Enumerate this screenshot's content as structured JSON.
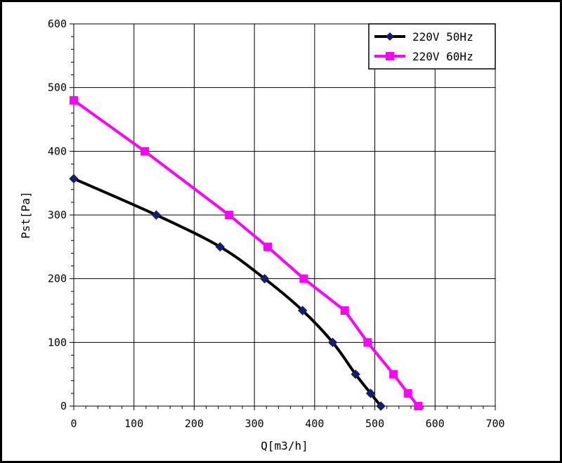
{
  "chart_data": {
    "type": "line",
    "xlabel": "Q[m3/h]",
    "ylabel": "Pst[Pa]",
    "xlim": [
      0,
      700
    ],
    "ylim": [
      0,
      600
    ],
    "xticks": [
      0,
      100,
      200,
      300,
      400,
      500,
      600,
      700
    ],
    "yticks": [
      0,
      100,
      200,
      300,
      400,
      500,
      600
    ],
    "grid": true,
    "legend_position": "top-right",
    "series": [
      {
        "name": "220V 50Hz",
        "color": "#000000",
        "marker": "diamond",
        "marker_color": "#1a1a6e",
        "x": [
          0,
          137,
          243,
          317,
          380,
          430,
          468,
          493,
          510
        ],
        "y": [
          357,
          300,
          250,
          200,
          150,
          100,
          50,
          20,
          0
        ]
      },
      {
        "name": "220V 60Hz",
        "color": "#ff00ff",
        "marker": "square",
        "marker_color": "#ff00ff",
        "x": [
          0,
          118,
          258,
          322,
          382,
          450,
          488,
          531,
          555,
          572
        ],
        "y": [
          480,
          400,
          300,
          250,
          200,
          150,
          100,
          50,
          20,
          0
        ]
      }
    ]
  }
}
